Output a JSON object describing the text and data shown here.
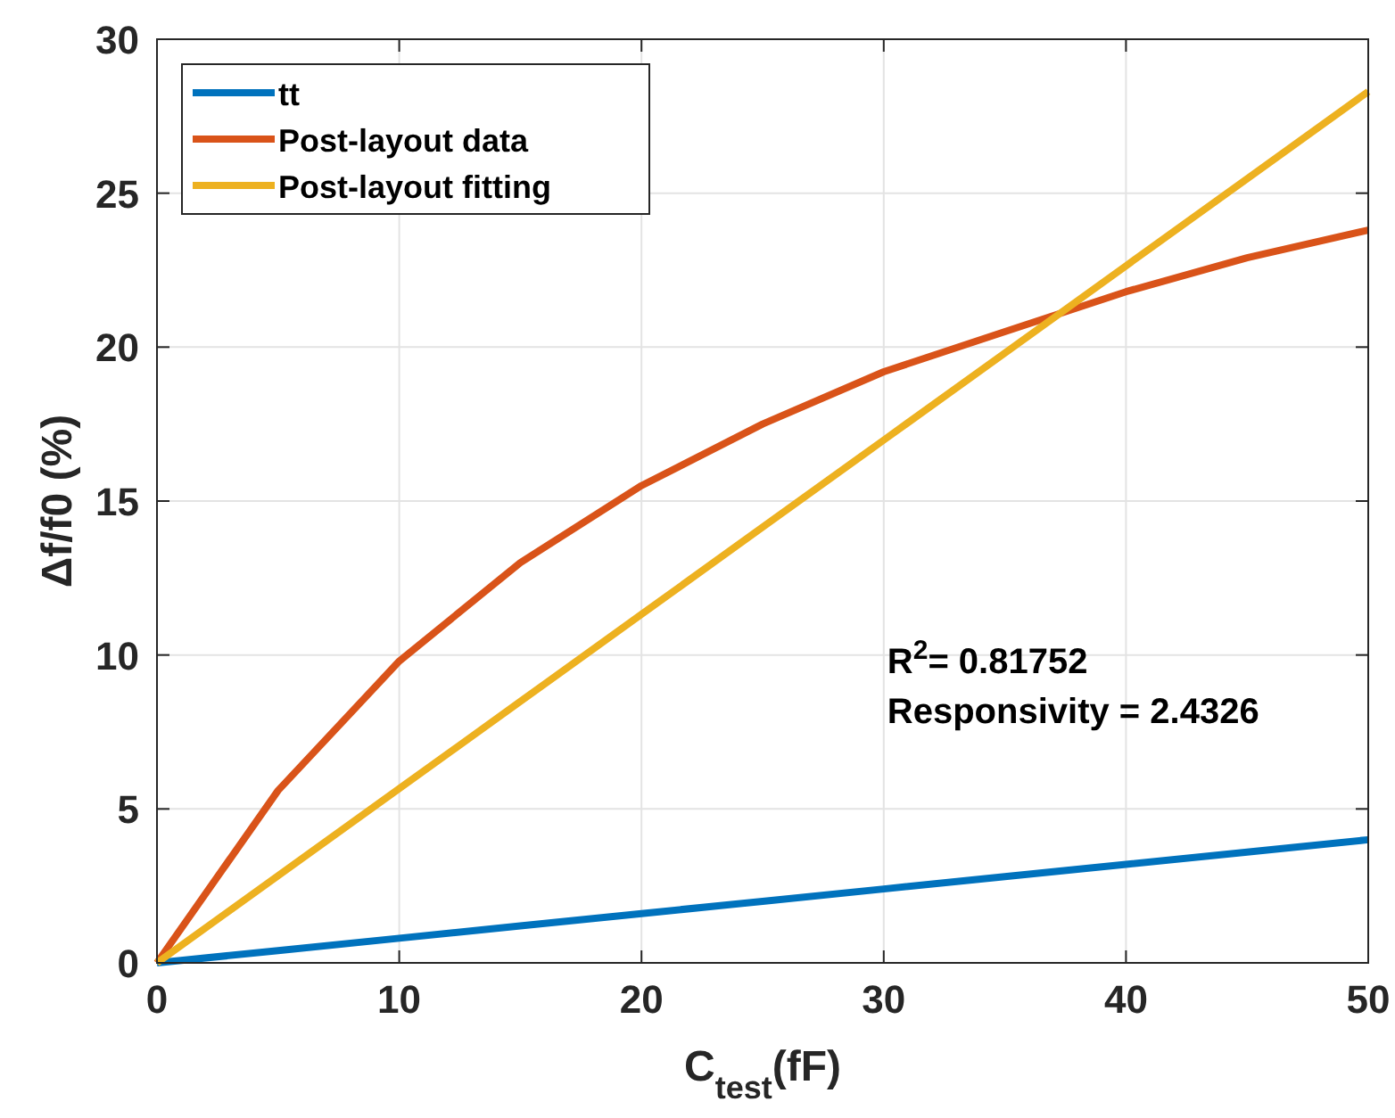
{
  "chart_data": {
    "type": "line",
    "xlabel": "C$_{test}$(fF)",
    "ylabel": "Δf/f0 (%)",
    "x": [
      0,
      5,
      10,
      15,
      20,
      25,
      30,
      35,
      40,
      45,
      50
    ],
    "series": [
      {
        "name": "tt",
        "color": "#0072bd",
        "values": [
          0,
          0.4,
          0.8,
          1.2,
          1.6,
          2,
          2.4,
          2.8,
          3.2,
          3.6,
          4
        ]
      },
      {
        "name": "Post-layout data",
        "color": "#d95319",
        "values": [
          0,
          5.6,
          9.8,
          13,
          15.5,
          17.5,
          19.2,
          20.5,
          21.8,
          22.9,
          23.8
        ]
      },
      {
        "name": "Post-layout fitting",
        "color": "#edb120",
        "values": [
          0,
          2.83,
          5.66,
          8.49,
          11.32,
          14.15,
          16.98,
          19.81,
          22.64,
          25.47,
          28.3
        ]
      }
    ],
    "xlim": [
      0,
      50
    ],
    "xticks": [
      0,
      10,
      20,
      30,
      40,
      50
    ],
    "ylim": [
      0,
      30
    ],
    "yticks": [
      0,
      5,
      10,
      15,
      20,
      25,
      30
    ],
    "grid": true,
    "legend": "top left",
    "marker": "none",
    "line_style": "solid",
    "annotations": [
      "R$^{2}$= 0.81752",
      "Responsivity = 2.4326"
    ]
  }
}
